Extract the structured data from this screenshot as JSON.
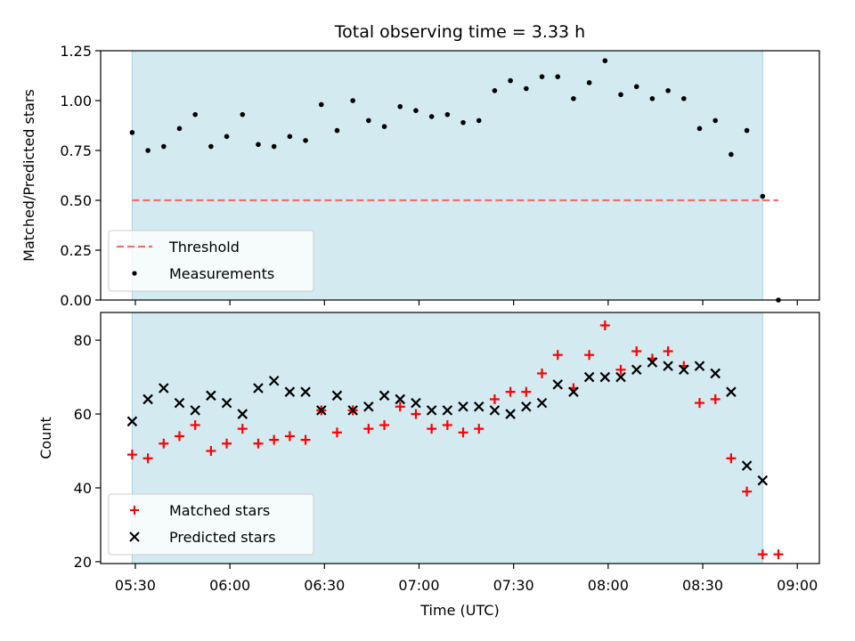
{
  "figure_title": "Total observing time = 3.33 h",
  "xlabel": "Time (UTC)",
  "x_ticks": [
    "05:30",
    "06:00",
    "06:30",
    "07:00",
    "07:30",
    "08:00",
    "08:30",
    "09:00"
  ],
  "colors": {
    "observing_span": "#d3eaf1",
    "threshold": "#f07070",
    "measurements": "#000000",
    "matched": "#ff0000",
    "predicted": "#000000"
  },
  "chart_data": [
    {
      "type": "scatter",
      "ylabel": "Matched/Predicted stars",
      "ylim": [
        0,
        1.25
      ],
      "y_ticks": [
        "0.00",
        "0.25",
        "0.50",
        "0.75",
        "1.00",
        "1.25"
      ],
      "observing_span": [
        "05:29",
        "08:49"
      ],
      "threshold": 0.5,
      "legend": [
        "Threshold",
        "Measurements"
      ],
      "legend_position": "lower-left",
      "x": [
        "05:29",
        "05:34",
        "05:39",
        "05:44",
        "05:49",
        "05:54",
        "05:59",
        "06:04",
        "06:09",
        "06:14",
        "06:19",
        "06:24",
        "06:29",
        "06:34",
        "06:39",
        "06:44",
        "06:49",
        "06:54",
        "06:59",
        "07:04",
        "07:09",
        "07:14",
        "07:19",
        "07:24",
        "07:29",
        "07:34",
        "07:39",
        "07:44",
        "07:49",
        "07:54",
        "07:59",
        "08:04",
        "08:09",
        "08:14",
        "08:19",
        "08:24",
        "08:29",
        "08:34",
        "08:39",
        "08:44",
        "08:49",
        "08:54"
      ],
      "measurements": [
        0.84,
        0.75,
        0.77,
        0.86,
        0.93,
        0.77,
        0.82,
        0.93,
        0.78,
        0.77,
        0.82,
        0.8,
        0.98,
        0.85,
        1.0,
        0.9,
        0.87,
        0.97,
        0.95,
        0.92,
        0.93,
        0.89,
        0.9,
        1.05,
        1.1,
        1.06,
        1.12,
        1.12,
        1.01,
        1.09,
        1.2,
        1.03,
        1.07,
        1.01,
        1.05,
        1.01,
        0.86,
        0.9,
        0.73,
        0.85,
        0.52,
        0.0
      ]
    },
    {
      "type": "scatter",
      "ylabel": "Count",
      "ylim": [
        19.5,
        87.5
      ],
      "y_ticks": [
        "20",
        "40",
        "60",
        "80"
      ],
      "observing_span": [
        "05:29",
        "08:49"
      ],
      "legend": [
        "Matched stars",
        "Predicted stars"
      ],
      "legend_position": "lower-left",
      "series": [
        {
          "name": "Matched stars",
          "marker": "+",
          "x": [
            "05:29",
            "05:34",
            "05:39",
            "05:44",
            "05:49",
            "05:54",
            "05:59",
            "06:04",
            "06:09",
            "06:14",
            "06:19",
            "06:24",
            "06:29",
            "06:34",
            "06:39",
            "06:44",
            "06:49",
            "06:54",
            "06:59",
            "07:04",
            "07:09",
            "07:14",
            "07:19",
            "07:24",
            "07:29",
            "07:34",
            "07:39",
            "07:44",
            "07:49",
            "07:54",
            "07:59",
            "08:04",
            "08:09",
            "08:14",
            "08:19",
            "08:24",
            "08:29",
            "08:34",
            "08:39",
            "08:44",
            "08:49",
            "08:54"
          ],
          "values": [
            49,
            48,
            52,
            54,
            57,
            50,
            52,
            56,
            52,
            53,
            54,
            53,
            61,
            55,
            61,
            56,
            57,
            62,
            60,
            56,
            57,
            55,
            56,
            64,
            66,
            66,
            71,
            76,
            67,
            76,
            84,
            72,
            77,
            75,
            77,
            73,
            63,
            64,
            48,
            39,
            22,
            22
          ]
        },
        {
          "name": "Predicted stars",
          "marker": "x",
          "x": [
            "05:29",
            "05:34",
            "05:39",
            "05:44",
            "05:49",
            "05:54",
            "05:59",
            "06:04",
            "06:09",
            "06:14",
            "06:19",
            "06:24",
            "06:29",
            "06:34",
            "06:39",
            "06:44",
            "06:49",
            "06:54",
            "06:59",
            "07:04",
            "07:09",
            "07:14",
            "07:19",
            "07:24",
            "07:29",
            "07:34",
            "07:39",
            "07:44",
            "07:49",
            "07:54",
            "07:59",
            "08:04",
            "08:09",
            "08:14",
            "08:19",
            "08:24",
            "08:29",
            "08:34",
            "08:39",
            "08:44",
            "08:49"
          ],
          "values": [
            58,
            64,
            67,
            63,
            61,
            65,
            63,
            60,
            67,
            69,
            66,
            66,
            61,
            65,
            61,
            62,
            65,
            64,
            63,
            61,
            61,
            62,
            62,
            61,
            60,
            62,
            63,
            68,
            66,
            70,
            70,
            70,
            72,
            74,
            73,
            72,
            73,
            71,
            66,
            46,
            42
          ]
        }
      ]
    }
  ]
}
